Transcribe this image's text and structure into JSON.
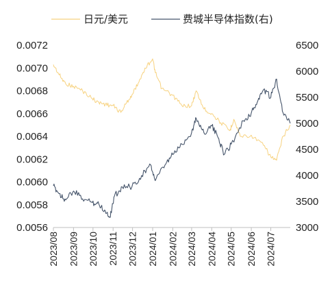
{
  "chart_data": {
    "type": "line",
    "title": "",
    "x_range": [
      "2023-08-01",
      "2024-07-31"
    ],
    "x_ticks": [
      "2023/08",
      "2023/09",
      "2023/10",
      "2023/11",
      "2023/12",
      "2024/01",
      "2024/02",
      "2024/03",
      "2024/04",
      "2024/05",
      "2024/06",
      "2024/07"
    ],
    "y_left": {
      "ylim": [
        0.0056,
        0.0072
      ],
      "ticks": [
        "0.0056",
        "0.0058",
        "0.0060",
        "0.0062",
        "0.0064",
        "0.0066",
        "0.0068",
        "0.0070",
        "0.0072"
      ]
    },
    "y_right": {
      "ylim": [
        3000,
        6500
      ],
      "ticks": [
        "3000",
        "3500",
        "4000",
        "4500",
        "5000",
        "5500",
        "6000",
        "6500"
      ]
    },
    "legend_position": "top",
    "grid": false,
    "series": [
      {
        "name": "日元/美元",
        "axis": "left",
        "color": "#F7D27F",
        "points": [
          [
            "2023-08-01",
            0.00703
          ],
          [
            "2023-08-10",
            0.00694
          ],
          [
            "2023-08-20",
            0.00686
          ],
          [
            "2023-09-01",
            0.00684
          ],
          [
            "2023-09-15",
            0.0068
          ],
          [
            "2023-09-30",
            0.00673
          ],
          [
            "2023-10-10",
            0.0067
          ],
          [
            "2023-10-20",
            0.00668
          ],
          [
            "2023-11-01",
            0.00667
          ],
          [
            "2023-11-13",
            0.00661
          ],
          [
            "2023-11-22",
            0.0067
          ],
          [
            "2023-12-01",
            0.00677
          ],
          [
            "2023-12-12",
            0.0069
          ],
          [
            "2023-12-20",
            0.007
          ],
          [
            "2024-01-01",
            0.00708
          ],
          [
            "2024-01-05",
            0.00696
          ],
          [
            "2024-01-15",
            0.00682
          ],
          [
            "2024-02-01",
            0.00676
          ],
          [
            "2024-02-15",
            0.00667
          ],
          [
            "2024-03-01",
            0.00667
          ],
          [
            "2024-03-08",
            0.0068
          ],
          [
            "2024-03-20",
            0.00664
          ],
          [
            "2024-04-01",
            0.0066
          ],
          [
            "2024-04-15",
            0.00652
          ],
          [
            "2024-04-29",
            0.00645
          ],
          [
            "2024-05-05",
            0.00655
          ],
          [
            "2024-05-15",
            0.0064
          ],
          [
            "2024-06-01",
            0.00641
          ],
          [
            "2024-06-20",
            0.00632
          ],
          [
            "2024-07-01",
            0.00622
          ],
          [
            "2024-07-10",
            0.00619
          ],
          [
            "2024-07-20",
            0.0064
          ],
          [
            "2024-07-31",
            0.0065
          ]
        ]
      },
      {
        "name": "费城半导体指数(右)",
        "axis": "right",
        "color": "#45546A",
        "points": [
          [
            "2023-08-01",
            3800
          ],
          [
            "2023-08-10",
            3650
          ],
          [
            "2023-08-20",
            3530
          ],
          [
            "2023-09-01",
            3700
          ],
          [
            "2023-09-15",
            3550
          ],
          [
            "2023-09-30",
            3480
          ],
          [
            "2023-10-10",
            3450
          ],
          [
            "2023-10-20",
            3320
          ],
          [
            "2023-10-27",
            3200
          ],
          [
            "2023-11-03",
            3600
          ],
          [
            "2023-11-15",
            3780
          ],
          [
            "2023-11-30",
            3780
          ],
          [
            "2023-12-15",
            4000
          ],
          [
            "2023-12-29",
            4200
          ],
          [
            "2024-01-05",
            3900
          ],
          [
            "2024-01-20",
            4200
          ],
          [
            "2024-02-01",
            4400
          ],
          [
            "2024-02-15",
            4600
          ],
          [
            "2024-03-01",
            4820
          ],
          [
            "2024-03-08",
            5100
          ],
          [
            "2024-03-20",
            4820
          ],
          [
            "2024-04-01",
            4950
          ],
          [
            "2024-04-12",
            4700
          ],
          [
            "2024-04-20",
            4400
          ],
          [
            "2024-05-01",
            4600
          ],
          [
            "2024-05-20",
            5050
          ],
          [
            "2024-06-01",
            5200
          ],
          [
            "2024-06-10",
            5400
          ],
          [
            "2024-06-20",
            5650
          ],
          [
            "2024-07-01",
            5500
          ],
          [
            "2024-07-10",
            5850
          ],
          [
            "2024-07-20",
            5200
          ],
          [
            "2024-07-31",
            5000
          ]
        ]
      }
    ]
  }
}
